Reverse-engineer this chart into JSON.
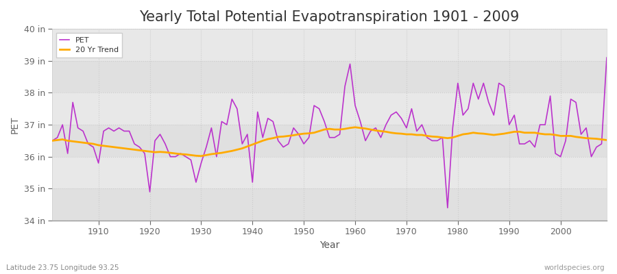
{
  "title": "Yearly Total Potential Evapotranspiration 1901 - 2009",
  "xlabel": "Year",
  "ylabel": "PET",
  "xlim": [
    1901,
    2009
  ],
  "ylim": [
    34,
    40
  ],
  "yticks": [
    34,
    35,
    36,
    37,
    38,
    39,
    40
  ],
  "ytick_labels": [
    "34 in",
    "35 in",
    "36 in",
    "37 in",
    "38 in",
    "39 in",
    "40 in"
  ],
  "fig_bg_color": "#f0f0f0",
  "plot_bg_color": "#e8e8e8",
  "alt_band_color": "#dcdcdc",
  "pet_color": "#bb33cc",
  "trend_color": "#ffaa00",
  "pet_linewidth": 1.2,
  "trend_linewidth": 2.0,
  "title_fontsize": 15,
  "axis_fontsize": 10,
  "tick_fontsize": 9,
  "watermark": "worldspecies.org",
  "coord_label": "Latitude 23.75 Longitude 93.25",
  "years": [
    1901,
    1902,
    1903,
    1904,
    1905,
    1906,
    1907,
    1908,
    1909,
    1910,
    1911,
    1912,
    1913,
    1914,
    1915,
    1916,
    1917,
    1918,
    1919,
    1920,
    1921,
    1922,
    1923,
    1924,
    1925,
    1926,
    1927,
    1928,
    1929,
    1930,
    1931,
    1932,
    1933,
    1934,
    1935,
    1936,
    1937,
    1938,
    1939,
    1940,
    1941,
    1942,
    1943,
    1944,
    1945,
    1946,
    1947,
    1948,
    1949,
    1950,
    1951,
    1952,
    1953,
    1954,
    1955,
    1956,
    1957,
    1958,
    1959,
    1960,
    1961,
    1962,
    1963,
    1964,
    1965,
    1966,
    1967,
    1968,
    1969,
    1970,
    1971,
    1972,
    1973,
    1974,
    1975,
    1976,
    1977,
    1978,
    1979,
    1980,
    1981,
    1982,
    1983,
    1984,
    1985,
    1986,
    1987,
    1988,
    1989,
    1990,
    1991,
    1992,
    1993,
    1994,
    1995,
    1996,
    1997,
    1998,
    1999,
    2000,
    2001,
    2002,
    2003,
    2004,
    2005,
    2006,
    2007,
    2008,
    2009
  ],
  "pet": [
    36.5,
    36.6,
    37.0,
    36.1,
    37.7,
    36.9,
    36.8,
    36.4,
    36.3,
    35.8,
    36.8,
    36.9,
    36.8,
    36.9,
    36.8,
    36.8,
    36.4,
    36.3,
    36.1,
    34.9,
    36.5,
    36.7,
    36.4,
    36.0,
    36.0,
    36.1,
    36.0,
    35.9,
    35.2,
    35.8,
    36.3,
    36.9,
    36.0,
    37.1,
    37.0,
    37.8,
    37.5,
    36.4,
    36.7,
    35.2,
    37.4,
    36.6,
    37.2,
    37.1,
    36.5,
    36.3,
    36.4,
    36.9,
    36.7,
    36.4,
    36.6,
    37.6,
    37.5,
    37.1,
    36.6,
    36.6,
    36.7,
    38.2,
    38.9,
    37.6,
    37.1,
    36.5,
    36.8,
    36.9,
    36.6,
    37.0,
    37.3,
    37.4,
    37.2,
    36.9,
    37.5,
    36.8,
    37.0,
    36.6,
    36.5,
    36.5,
    36.6,
    34.4,
    36.9,
    38.3,
    37.3,
    37.5,
    38.3,
    37.8,
    38.3,
    37.7,
    37.3,
    38.3,
    38.2,
    37.0,
    37.3,
    36.4,
    36.4,
    36.5,
    36.3,
    37.0,
    37.0,
    37.9,
    36.1,
    36.0,
    36.5,
    37.8,
    37.7,
    36.7,
    36.9,
    36.0,
    36.3,
    36.4,
    39.1
  ],
  "trend": [
    36.5,
    36.52,
    36.54,
    36.5,
    36.48,
    36.46,
    36.44,
    36.42,
    36.4,
    36.36,
    36.34,
    36.32,
    36.3,
    36.28,
    36.26,
    36.24,
    36.22,
    36.2,
    36.18,
    36.16,
    36.14,
    36.15,
    36.14,
    36.12,
    36.1,
    36.08,
    36.07,
    36.05,
    36.03,
    36.02,
    36.05,
    36.08,
    36.1,
    36.12,
    36.15,
    36.18,
    36.22,
    36.26,
    36.32,
    36.38,
    36.44,
    36.5,
    36.55,
    36.58,
    36.62,
    36.63,
    36.65,
    36.67,
    36.7,
    36.72,
    36.73,
    36.75,
    36.8,
    36.85,
    36.87,
    36.85,
    36.85,
    36.87,
    36.9,
    36.92,
    36.9,
    36.88,
    36.85,
    36.82,
    36.8,
    36.78,
    36.75,
    36.73,
    36.72,
    36.7,
    36.7,
    36.68,
    36.68,
    36.65,
    36.63,
    36.62,
    36.6,
    36.58,
    36.6,
    36.65,
    36.7,
    36.72,
    36.75,
    36.73,
    36.72,
    36.7,
    36.68,
    36.7,
    36.72,
    36.75,
    36.78,
    36.78,
    36.75,
    36.75,
    36.75,
    36.72,
    36.7,
    36.7,
    36.68,
    36.65,
    36.65,
    36.65,
    36.62,
    36.6,
    36.58,
    36.57,
    36.56,
    36.54,
    36.52
  ]
}
